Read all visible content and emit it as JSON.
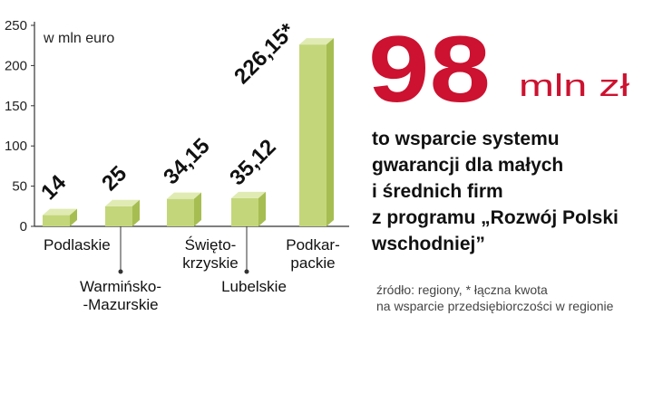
{
  "chart_data": {
    "type": "bar3d",
    "unit_label": "w mln euro",
    "categories": [
      "Podlaskie",
      "Warmińsko-\n-Mazurskie",
      "Święto-\nkrzyskie",
      "Lubelskie",
      "Podkar-\npackie"
    ],
    "values": [
      14,
      25,
      34.15,
      35.12,
      226.15
    ],
    "value_labels": [
      "14",
      "25",
      "34,15",
      "35,12",
      "226,15*"
    ],
    "color": "#c3d67a",
    "ylim": [
      0,
      250
    ],
    "yticks": [
      0,
      50,
      100,
      150,
      200,
      250
    ]
  },
  "headline": {
    "number": "98",
    "unit": "mln zł"
  },
  "description": [
    "to wsparcie systemu",
    "gwarancji dla małych",
    "i średnich firm",
    "z programu „Rozwój Polski",
    "wschodniej”"
  ],
  "source": [
    "źródło: regiony, * łączna kwota",
    "na wsparcie przedsiębiorczości w regionie"
  ]
}
